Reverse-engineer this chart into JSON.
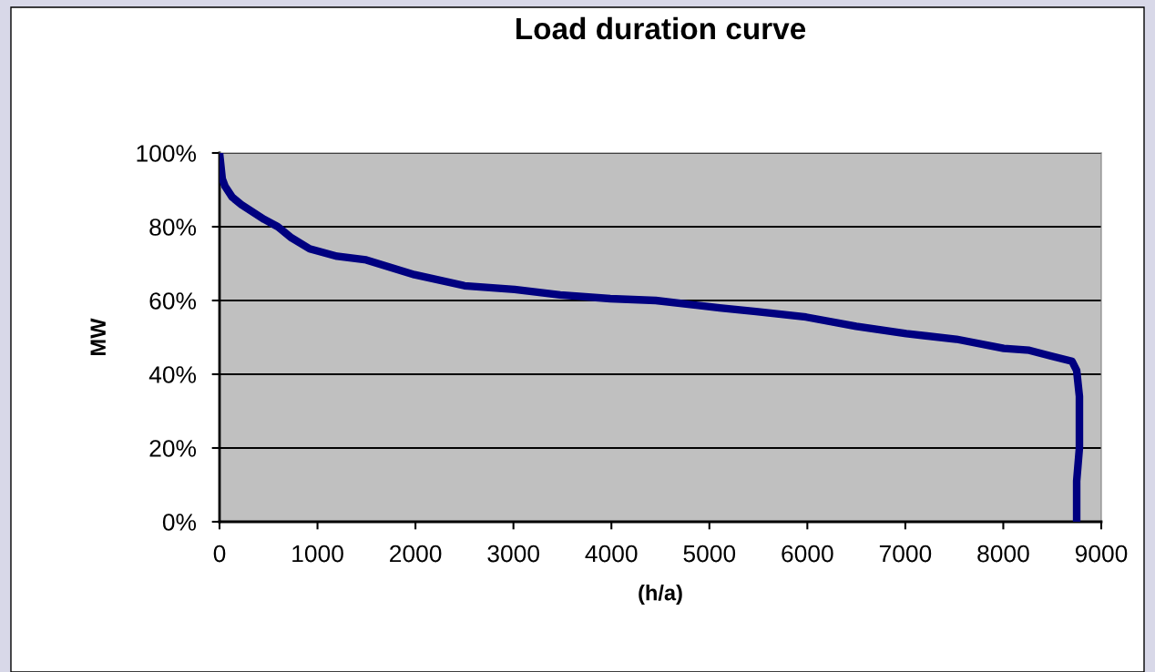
{
  "chart_data": {
    "type": "line",
    "title": "Load duration curve",
    "xlabel": "(h/a)",
    "ylabel": "MW",
    "x": [
      0,
      28,
      56,
      130,
      223,
      456,
      595,
      734,
      920,
      1200,
      1497,
      1990,
      2500,
      3012,
      3477,
      3989,
      4453,
      5104,
      5476,
      5987,
      6499,
      7010,
      7521,
      8005,
      8265,
      8479,
      8702,
      8749,
      8777,
      8777,
      8749,
      8749
    ],
    "series": [
      {
        "color": "#000080",
        "values": [
          100,
          93,
          91,
          88,
          86,
          82,
          80,
          77,
          74,
          72,
          71,
          67,
          64,
          63,
          61.5,
          60.5,
          60,
          58,
          57,
          55.5,
          53,
          51,
          49.5,
          47,
          46.5,
          45,
          43.5,
          41,
          34,
          20,
          11,
          0
        ]
      }
    ],
    "xlim": [
      0,
      9000
    ],
    "xticks": [
      0,
      1000,
      2000,
      3000,
      4000,
      5000,
      6000,
      7000,
      8000,
      9000
    ],
    "ylim": [
      0,
      100
    ],
    "yticks": [
      {
        "value": 0,
        "label": "0%"
      },
      {
        "value": 20,
        "label": "20%"
      },
      {
        "value": 40,
        "label": "40%"
      },
      {
        "value": 60,
        "label": "60%"
      },
      {
        "value": 80,
        "label": "80%"
      },
      {
        "value": 100,
        "label": "100%"
      }
    ],
    "grid": "y",
    "legend": false,
    "marker": "none",
    "line_style": "solid"
  }
}
